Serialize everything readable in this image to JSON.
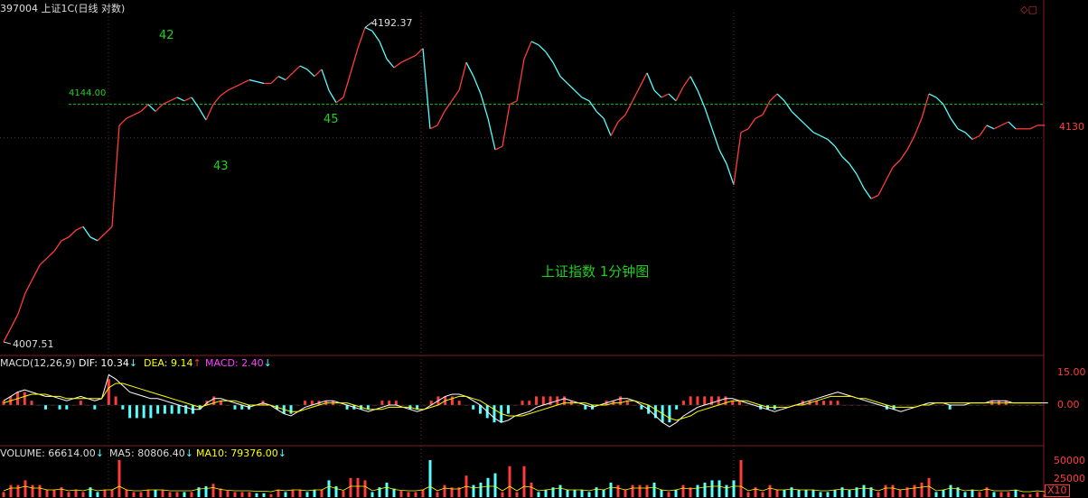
{
  "header": {
    "title": "397004 上证1C(日线 对数)"
  },
  "annotations": {
    "wave_labels": [
      "42",
      "43",
      "45"
    ],
    "chart_caption": "上证指数 1分钟图",
    "ref_level_label": "4144.00",
    "high_label": "4192.37",
    "low_label": "4007.51",
    "right_price_label": "4130"
  },
  "macd_panel": {
    "name": "MACD(12,26,9)",
    "dif_label": "DIF: 10.34",
    "dif_arrow": "↓",
    "dea_label": "DEA: 9.14",
    "dea_arrow": "↑",
    "macd_label": "MACD: 2.40",
    "macd_arrow": "↓",
    "ticks": [
      "15.00",
      "0.00"
    ]
  },
  "volume_panel": {
    "vol_label": "VOLUME: 66614.00",
    "vol_arrow": "↓",
    "ma5_label": "MA5: 80806.40",
    "ma5_arrow": "↓",
    "ma10_label": "MA10: 79376.00",
    "ma10_arrow": "↓",
    "ticks": [
      "50000",
      "25000"
    ],
    "unit": "X10"
  },
  "colors": {
    "up": "#ff3c3c",
    "down": "#54ffff",
    "ref_line": "#00d000",
    "frame": "#8a1c1c",
    "dif": "#ffffff",
    "dea": "#ffff00",
    "macd_label": "#ff40ff",
    "annot": "#20d020"
  },
  "chart_data": {
    "type": "line",
    "title": "上证指数 1分钟图",
    "price_range": [
      4007.51,
      4192.37
    ],
    "reference_level": 4144.0,
    "x": [
      0,
      8,
      16,
      24,
      32,
      40,
      48,
      56,
      64,
      72,
      80,
      88,
      96,
      104,
      112,
      120,
      128,
      136,
      144,
      152,
      160,
      168,
      176,
      184,
      192,
      200,
      208,
      216,
      224,
      232,
      240,
      248,
      256,
      264,
      272,
      280,
      288,
      296,
      304,
      312,
      320,
      328,
      336,
      344,
      352,
      360,
      368,
      376,
      384,
      392,
      400,
      408,
      416,
      424,
      432,
      440,
      448,
      456,
      464,
      472,
      480,
      488,
      496,
      504,
      512,
      520,
      528,
      536,
      544,
      552,
      560,
      568,
      576,
      584,
      592,
      600,
      608,
      616,
      624,
      632,
      640,
      648,
      656,
      664,
      672,
      680,
      688,
      696,
      704,
      712,
      720,
      728,
      736,
      744,
      752,
      760,
      768,
      776,
      784,
      792,
      800,
      808,
      816,
      824,
      832,
      840,
      848,
      856,
      864,
      872,
      880,
      888,
      896,
      904,
      912,
      920,
      928,
      936,
      944,
      952,
      960,
      968,
      976,
      984,
      992,
      1000,
      1008,
      1016,
      1024,
      1032,
      1040,
      1048,
      1056,
      1064,
      1072,
      1080,
      1088,
      1096,
      1104,
      1112,
      1120,
      1128,
      1136,
      1144,
      1152
    ],
    "y": [
      4008,
      4016,
      4024,
      4036,
      4044,
      4052,
      4056,
      4060,
      4066,
      4068,
      4072,
      4074,
      4068,
      4066,
      4070,
      4074,
      4132,
      4136,
      4138,
      4140,
      4144,
      4140,
      4144,
      4146,
      4148,
      4146,
      4148,
      4142,
      4135,
      4144,
      4149,
      4152,
      4154,
      4156,
      4158,
      4157,
      4156,
      4156,
      4160,
      4158,
      4162,
      4166,
      4164,
      4160,
      4164,
      4152,
      4145,
      4148,
      4162,
      4176,
      4188,
      4186,
      4180,
      4170,
      4165,
      4168,
      4170,
      4172,
      4176,
      4130,
      4132,
      4140,
      4146,
      4152,
      4168,
      4160,
      4150,
      4136,
      4118,
      4120,
      4144,
      4146,
      4170,
      4180,
      4178,
      4174,
      4168,
      4160,
      4156,
      4152,
      4148,
      4146,
      4140,
      4136,
      4126,
      4134,
      4138,
      4146,
      4154,
      4162,
      4152,
      4148,
      4150,
      4146,
      4154,
      4160,
      4152,
      4142,
      4130,
      4118,
      4110,
      4098,
      4128,
      4130,
      4136,
      4138,
      4146,
      4150,
      4146,
      4140,
      4136,
      4132,
      4128,
      4126,
      4124,
      4120,
      4114,
      4110,
      4104,
      4096,
      4090,
      4092,
      4100,
      4108,
      4112,
      4118,
      4126,
      4136,
      4150,
      4148,
      4144,
      4136,
      4130,
      4128,
      4124,
      4126,
      4132,
      4130,
      4132,
      4134,
      4130,
      4130,
      4130,
      4132,
      4132
    ],
    "macd": {
      "dif": [
        2,
        4,
        6,
        7,
        6,
        5,
        4,
        4,
        3,
        2,
        3,
        4,
        3,
        2,
        3,
        14,
        12,
        9,
        6,
        5,
        4,
        3,
        3,
        2,
        1,
        0,
        -1,
        -2,
        -2,
        1,
        3,
        3,
        2,
        1,
        0,
        -1,
        0,
        1,
        0,
        -2,
        -4,
        -5,
        -3,
        -1,
        0,
        1,
        2,
        2,
        1,
        0,
        -1,
        -2,
        -3,
        -2,
        -1,
        0,
        0,
        -1,
        -2,
        -3,
        -2,
        0,
        2,
        4,
        5,
        5,
        4,
        2,
        0,
        -3,
        -6,
        -8,
        -7,
        -5,
        -4,
        -3,
        -1,
        0,
        1,
        2,
        3,
        2,
        1,
        0,
        -1,
        0,
        1,
        2,
        3,
        3,
        2,
        0,
        -2,
        -5,
        -8,
        -10,
        -8,
        -5,
        -3,
        -1,
        0,
        1,
        2,
        3,
        3,
        2,
        1,
        0,
        -1,
        -2,
        -3,
        -2,
        -1,
        0,
        1,
        2,
        3,
        4,
        5,
        6,
        5,
        4,
        3,
        2,
        1,
        0,
        -1,
        -2,
        -3,
        -2,
        -1,
        0,
        1,
        1,
        1,
        0,
        0,
        0,
        1,
        1,
        1,
        2,
        2,
        2,
        1,
        1,
        1,
        1,
        1,
        1
      ],
      "dea": [
        1,
        2,
        3,
        4,
        5,
        5,
        5,
        4,
        4,
        3,
        3,
        3,
        3,
        3,
        3,
        8,
        10,
        10,
        9,
        8,
        7,
        6,
        5,
        4,
        3,
        2,
        1,
        0,
        -1,
        0,
        1,
        2,
        2,
        2,
        1,
        0,
        0,
        0,
        0,
        -1,
        -2,
        -3,
        -3,
        -2,
        -1,
        0,
        1,
        1,
        1,
        1,
        0,
        -1,
        -2,
        -2,
        -2,
        -1,
        -1,
        -1,
        -1,
        -2,
        -2,
        -1,
        0,
        2,
        3,
        4,
        4,
        3,
        2,
        0,
        -2,
        -4,
        -5,
        -5,
        -5,
        -4,
        -3,
        -2,
        -1,
        0,
        1,
        1,
        1,
        1,
        0,
        0,
        0,
        1,
        1,
        2,
        2,
        1,
        0,
        -2,
        -4,
        -6,
        -7,
        -6,
        -5,
        -3,
        -2,
        -1,
        0,
        1,
        2,
        2,
        2,
        1,
        0,
        -1,
        -1,
        -1,
        -1,
        0,
        0,
        1,
        2,
        3,
        4,
        4,
        4,
        4,
        3,
        3,
        2,
        1,
        0,
        -1,
        -1,
        -1,
        -1,
        0,
        0,
        1,
        1,
        1,
        1,
        1,
        1,
        1,
        1,
        1,
        1,
        1,
        1,
        1,
        1,
        1,
        1
      ],
      "hist": [
        1,
        2,
        3,
        3,
        1,
        0,
        -1,
        0,
        -1,
        -1,
        0,
        1,
        0,
        -1,
        0,
        6,
        2,
        -1,
        -3,
        -3,
        -3,
        -3,
        -2,
        -2,
        -2,
        -2,
        -2,
        -2,
        -1,
        1,
        2,
        1,
        0,
        -1,
        -1,
        -1,
        0,
        1,
        0,
        -1,
        -2,
        -2,
        0,
        1,
        1,
        1,
        1,
        1,
        0,
        -1,
        -1,
        -1,
        -1,
        0,
        1,
        1,
        1,
        0,
        -1,
        -1,
        0,
        1,
        2,
        2,
        2,
        1,
        0,
        -1,
        -2,
        -3,
        -4,
        -4,
        -2,
        0,
        1,
        1,
        2,
        2,
        2,
        2,
        2,
        1,
        0,
        -1,
        -1,
        0,
        1,
        1,
        2,
        1,
        0,
        -1,
        -2,
        -3,
        -4,
        -4,
        -1,
        1,
        2,
        2,
        2,
        2,
        2,
        2,
        1,
        1,
        0,
        0,
        -1,
        -1,
        -1,
        0,
        0,
        0,
        1,
        1,
        1,
        1,
        1,
        1,
        0,
        0,
        0,
        0,
        0,
        0,
        -1,
        -1,
        0,
        0,
        0,
        0,
        0,
        0,
        0,
        -1,
        0,
        0,
        0,
        0,
        0,
        1,
        1,
        1,
        0,
        0,
        0,
        0,
        0
      ]
    },
    "volume_ylim": [
      0,
      50000
    ]
  }
}
